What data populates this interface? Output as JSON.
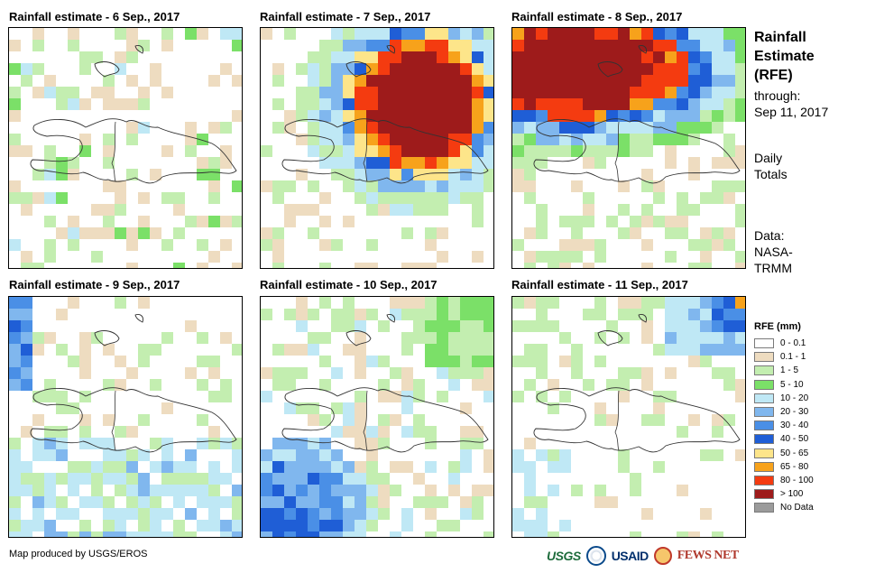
{
  "panels": [
    {
      "title": "Rainfall estimate - 6 Sep., 2017"
    },
    {
      "title": "Rainfall estimate - 7 Sep., 2017"
    },
    {
      "title": "Rainfall estimate - 8 Sep., 2017"
    },
    {
      "title": "Rainfall estimate - 9 Sep., 2017"
    },
    {
      "title": "Rainfall estimate - 10 Sep., 2017"
    },
    {
      "title": "Rainfall estimate - 11 Sep., 2017"
    }
  ],
  "side": {
    "title_lines": [
      "Rainfall",
      "Estimate",
      "(RFE)"
    ],
    "through_label": "through:",
    "through_date": "Sep 11, 2017",
    "totals_lines": [
      "Daily",
      "Totals"
    ],
    "data_lines": [
      "Data:",
      "NASA-",
      "TRMM"
    ]
  },
  "legend": {
    "title": "RFE (mm)",
    "items": [
      {
        "label": "0 - 0.1",
        "color": "#ffffff"
      },
      {
        "label": "0.1 - 1",
        "color": "#eedcc0"
      },
      {
        "label": "1 - 5",
        "color": "#c3eeb0"
      },
      {
        "label": "5 - 10",
        "color": "#7be068"
      },
      {
        "label": "10 - 20",
        "color": "#bfe8f5"
      },
      {
        "label": "20 - 30",
        "color": "#80b7ee"
      },
      {
        "label": "30 - 40",
        "color": "#4a8fe6"
      },
      {
        "label": "40 - 50",
        "color": "#1f5ed6"
      },
      {
        "label": "50 - 65",
        "color": "#fde58a"
      },
      {
        "label": "65 - 80",
        "color": "#f7a21b"
      },
      {
        "label": "80 - 100",
        "color": "#f43b10"
      },
      {
        "label": "> 100",
        "color": "#9e1b1b"
      },
      {
        "label": "No Data",
        "color": "#9b9b9b"
      }
    ]
  },
  "footer": {
    "credit": "Map produced by USGS/EROS",
    "logo_usgs": "USGS",
    "logo_usaid": "USAID",
    "logo_fews": "FEWS NET"
  }
}
